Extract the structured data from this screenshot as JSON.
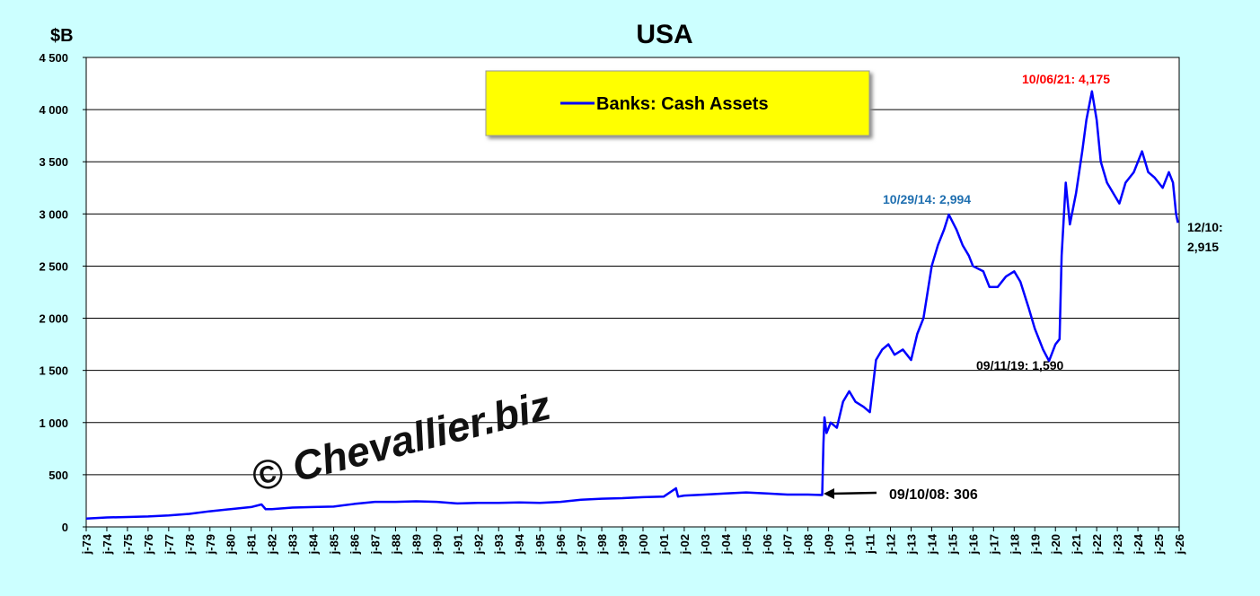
{
  "chart_data": {
    "type": "line",
    "title": "USA",
    "y_label": "$B",
    "watermark": "© Chevallier.biz",
    "annotations": [
      "10/06/21: 4,175",
      "10/29/14: 2,994",
      "09/11/19: 1,590",
      "09/10/08: 306",
      "12/10:",
      "2,915"
    ],
    "legend": "top-center",
    "grid": true,
    "x": [
      1973,
      1974,
      1975,
      1976,
      1977,
      1978,
      1979,
      1980,
      1981,
      1981.5,
      1981.7,
      1982,
      1983,
      1984,
      1985,
      1986,
      1987,
      1988,
      1989,
      1990,
      1991,
      1992,
      1993,
      1994,
      1995,
      1996,
      1997,
      1998,
      1999,
      2000,
      2001,
      2001.6,
      2001.7,
      2002,
      2003,
      2004,
      2005,
      2006,
      2007,
      2008,
      2008.69,
      2008.75,
      2008.8,
      2008.9,
      2009.1,
      2009.4,
      2009.7,
      2010,
      2010.3,
      2010.7,
      2011,
      2011.3,
      2011.6,
      2011.9,
      2012.2,
      2012.6,
      2013,
      2013.3,
      2013.6,
      2014,
      2014.3,
      2014.6,
      2014.83,
      2015.2,
      2015.5,
      2015.8,
      2016,
      2016.5,
      2016.8,
      2017.2,
      2017.6,
      2018,
      2018.3,
      2018.7,
      2019,
      2019.4,
      2019.69,
      2020,
      2020.2,
      2020.3,
      2020.5,
      2020.7,
      2021,
      2021.3,
      2021.5,
      2021.77,
      2022,
      2022.2,
      2022.5,
      2022.8,
      2023.1,
      2023.4,
      2023.8,
      2024.2,
      2024.5,
      2024.8,
      2025.2,
      2025.5,
      2025.7,
      2025.85,
      2025.94
    ],
    "series": [
      {
        "name": "Banks: Cash Assets",
        "color": "#0000ff",
        "values": [
          80,
          90,
          95,
          100,
          110,
          125,
          150,
          170,
          190,
          215,
          170,
          170,
          185,
          190,
          195,
          220,
          240,
          240,
          245,
          240,
          225,
          230,
          230,
          235,
          230,
          240,
          260,
          270,
          275,
          285,
          290,
          370,
          290,
          300,
          310,
          320,
          330,
          320,
          310,
          310,
          306,
          800,
          1050,
          900,
          1000,
          950,
          1200,
          1300,
          1200,
          1150,
          1100,
          1600,
          1700,
          1750,
          1650,
          1700,
          1600,
          1850,
          2000,
          2500,
          2700,
          2850,
          2994,
          2850,
          2700,
          2600,
          2500,
          2450,
          2300,
          2300,
          2400,
          2450,
          2350,
          2100,
          1900,
          1700,
          1590,
          1750,
          1800,
          2600,
          3300,
          2900,
          3200,
          3600,
          3900,
          4175,
          3900,
          3500,
          3300,
          3200,
          3100,
          3300,
          3400,
          3600,
          3400,
          3350,
          3250,
          3400,
          3300,
          3000,
          2915
        ]
      }
    ],
    "xlim": [
      1973,
      2026
    ],
    "xticks": [
      {
        "value": 1973,
        "label": "j-73"
      },
      {
        "value": 1974,
        "label": "j-74"
      },
      {
        "value": 1975,
        "label": "j-75"
      },
      {
        "value": 1976,
        "label": "j-76"
      },
      {
        "value": 1977,
        "label": "j-77"
      },
      {
        "value": 1978,
        "label": "j-78"
      },
      {
        "value": 1979,
        "label": "j-79"
      },
      {
        "value": 1980,
        "label": "j-80"
      },
      {
        "value": 1981,
        "label": "j-81"
      },
      {
        "value": 1982,
        "label": "j-82"
      },
      {
        "value": 1983,
        "label": "j-83"
      },
      {
        "value": 1984,
        "label": "j-84"
      },
      {
        "value": 1985,
        "label": "j-85"
      },
      {
        "value": 1986,
        "label": "j-86"
      },
      {
        "value": 1987,
        "label": "j-87"
      },
      {
        "value": 1988,
        "label": "j-88"
      },
      {
        "value": 1989,
        "label": "j-89"
      },
      {
        "value": 1990,
        "label": "j-90"
      },
      {
        "value": 1991,
        "label": "j-91"
      },
      {
        "value": 1992,
        "label": "j-92"
      },
      {
        "value": 1993,
        "label": "j-93"
      },
      {
        "value": 1994,
        "label": "j-94"
      },
      {
        "value": 1995,
        "label": "j-95"
      },
      {
        "value": 1996,
        "label": "j-96"
      },
      {
        "value": 1997,
        "label": "j-97"
      },
      {
        "value": 1998,
        "label": "j-98"
      },
      {
        "value": 1999,
        "label": "j-99"
      },
      {
        "value": 2000,
        "label": "j-00"
      },
      {
        "value": 2001,
        "label": "j-01"
      },
      {
        "value": 2002,
        "label": "j-02"
      },
      {
        "value": 2003,
        "label": "j-03"
      },
      {
        "value": 2004,
        "label": "j-04"
      },
      {
        "value": 2005,
        "label": "j-05"
      },
      {
        "value": 2006,
        "label": "j-06"
      },
      {
        "value": 2007,
        "label": "j-07"
      },
      {
        "value": 2008,
        "label": "j-08"
      },
      {
        "value": 2009,
        "label": "j-09"
      },
      {
        "value": 2010,
        "label": "j-10"
      },
      {
        "value": 2011,
        "label": "j-11"
      },
      {
        "value": 2012,
        "label": "j-12"
      },
      {
        "value": 2013,
        "label": "j-13"
      },
      {
        "value": 2014,
        "label": "j-14"
      },
      {
        "value": 2015,
        "label": "j-15"
      },
      {
        "value": 2016,
        "label": "j-16"
      },
      {
        "value": 2017,
        "label": "j-17"
      },
      {
        "value": 2018,
        "label": "j-18"
      },
      {
        "value": 2019,
        "label": "j-19"
      },
      {
        "value": 2020,
        "label": "j-20"
      },
      {
        "value": 2021,
        "label": "j-21"
      },
      {
        "value": 2022,
        "label": "j-22"
      },
      {
        "value": 2023,
        "label": "j-23"
      },
      {
        "value": 2024,
        "label": "j-24"
      },
      {
        "value": 2025,
        "label": "j-25"
      },
      {
        "value": 2026,
        "label": "j-26"
      }
    ],
    "ylim": [
      0,
      4500
    ],
    "yticks": [
      0,
      500,
      {
        "value": 1000,
        "label": "1 000"
      },
      {
        "value": 1500,
        "label": "1 500"
      },
      {
        "value": 2000,
        "label": "2 000"
      },
      {
        "value": 2500,
        "label": "2 500"
      },
      {
        "value": 3000,
        "label": "3 000"
      },
      {
        "value": 3500,
        "label": "3 500"
      },
      {
        "value": 4000,
        "label": "4 000"
      },
      {
        "value": 4500,
        "label": "4 500"
      }
    ]
  }
}
